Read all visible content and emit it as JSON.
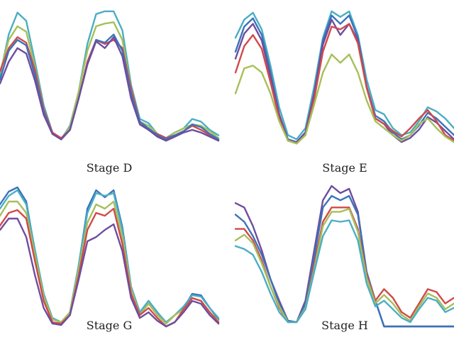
{
  "chart_data": [
    {
      "type": "line",
      "title": "Stage D",
      "series": [
        {
          "color": "#4aaec4",
          "values": [
            0.52,
            0.82,
            0.98,
            0.92,
            0.62,
            0.3,
            0.1,
            0.05,
            0.15,
            0.4,
            0.75,
            0.97,
            0.99,
            0.99,
            0.85,
            0.45,
            0.2,
            0.17,
            0.09,
            0.06,
            0.1,
            0.13,
            0.2,
            0.18,
            0.12,
            0.08
          ]
        },
        {
          "color": "#a6c05a",
          "values": [
            0.54,
            0.78,
            0.88,
            0.84,
            0.58,
            0.27,
            0.1,
            0.05,
            0.14,
            0.4,
            0.7,
            0.88,
            0.9,
            0.91,
            0.78,
            0.42,
            0.18,
            0.15,
            0.09,
            0.05,
            0.1,
            0.13,
            0.16,
            0.15,
            0.11,
            0.06
          ]
        },
        {
          "color": "#d04a4a",
          "values": [
            0.55,
            0.72,
            0.8,
            0.76,
            0.56,
            0.27,
            0.1,
            0.06,
            0.12,
            0.35,
            0.62,
            0.78,
            0.75,
            0.78,
            0.72,
            0.42,
            0.18,
            0.12,
            0.09,
            0.06,
            0.08,
            0.11,
            0.15,
            0.12,
            0.08,
            0.05
          ]
        },
        {
          "color": "#3a73b9",
          "values": [
            0.49,
            0.7,
            0.78,
            0.74,
            0.52,
            0.25,
            0.09,
            0.05,
            0.12,
            0.35,
            0.6,
            0.78,
            0.76,
            0.82,
            0.7,
            0.38,
            0.18,
            0.13,
            0.08,
            0.05,
            0.08,
            0.11,
            0.16,
            0.14,
            0.09,
            0.05
          ]
        },
        {
          "color": "#6e4d9e",
          "values": [
            0.46,
            0.62,
            0.72,
            0.68,
            0.48,
            0.23,
            0.09,
            0.05,
            0.12,
            0.35,
            0.6,
            0.77,
            0.72,
            0.8,
            0.66,
            0.35,
            0.16,
            0.12,
            0.07,
            0.04,
            0.07,
            0.1,
            0.12,
            0.1,
            0.07,
            0.04
          ]
        }
      ]
    },
    {
      "type": "line",
      "title": "Stage E",
      "series": [
        {
          "color": "#4aaec4",
          "values": [
            0.8,
            0.93,
            0.98,
            0.86,
            0.6,
            0.3,
            0.1,
            0.07,
            0.15,
            0.45,
            0.8,
            0.99,
            0.95,
            0.99,
            0.82,
            0.5,
            0.28,
            0.25,
            0.15,
            0.1,
            0.12,
            0.2,
            0.3,
            0.27,
            0.22,
            0.15
          ]
        },
        {
          "color": "#3a73b9",
          "values": [
            0.7,
            0.88,
            0.94,
            0.82,
            0.55,
            0.25,
            0.07,
            0.05,
            0.12,
            0.4,
            0.78,
            0.96,
            0.9,
            0.96,
            0.8,
            0.45,
            0.24,
            0.2,
            0.12,
            0.07,
            0.1,
            0.17,
            0.26,
            0.22,
            0.16,
            0.1
          ]
        },
        {
          "color": "#6e4d9e",
          "values": [
            0.65,
            0.83,
            0.9,
            0.78,
            0.52,
            0.25,
            0.06,
            0.05,
            0.12,
            0.4,
            0.75,
            0.93,
            0.82,
            0.9,
            0.78,
            0.45,
            0.22,
            0.18,
            0.1,
            0.05,
            0.08,
            0.14,
            0.23,
            0.19,
            0.13,
            0.07
          ]
        },
        {
          "color": "#d04a4a",
          "values": [
            0.55,
            0.74,
            0.82,
            0.72,
            0.48,
            0.22,
            0.06,
            0.04,
            0.1,
            0.36,
            0.7,
            0.88,
            0.86,
            0.9,
            0.76,
            0.44,
            0.22,
            0.18,
            0.13,
            0.09,
            0.15,
            0.22,
            0.28,
            0.2,
            0.1,
            0.06
          ]
        },
        {
          "color": "#a6c05a",
          "values": [
            0.4,
            0.58,
            0.6,
            0.55,
            0.4,
            0.2,
            0.06,
            0.04,
            0.1,
            0.32,
            0.55,
            0.68,
            0.62,
            0.68,
            0.55,
            0.35,
            0.2,
            0.15,
            0.1,
            0.06,
            0.1,
            0.18,
            0.22,
            0.15,
            0.09,
            0.05
          ]
        }
      ]
    },
    {
      "type": "line",
      "title": "Stage G",
      "series": [
        {
          "color": "#3a73b9",
          "values": [
            0.88,
            0.97,
            1.0,
            0.9,
            0.55,
            0.25,
            0.07,
            0.05,
            0.12,
            0.45,
            0.85,
            0.98,
            0.93,
            0.98,
            0.72,
            0.3,
            0.12,
            0.2,
            0.12,
            0.04,
            0.1,
            0.15,
            0.25,
            0.24,
            0.15,
            0.07
          ]
        },
        {
          "color": "#4aaec4",
          "values": [
            0.85,
            0.94,
            0.98,
            0.88,
            0.56,
            0.25,
            0.08,
            0.05,
            0.12,
            0.45,
            0.82,
            0.96,
            0.94,
            0.96,
            0.7,
            0.3,
            0.12,
            0.2,
            0.12,
            0.05,
            0.1,
            0.16,
            0.24,
            0.23,
            0.15,
            0.08
          ]
        },
        {
          "color": "#a6c05a",
          "values": [
            0.8,
            0.9,
            0.9,
            0.82,
            0.52,
            0.23,
            0.07,
            0.05,
            0.12,
            0.42,
            0.75,
            0.88,
            0.85,
            0.9,
            0.65,
            0.28,
            0.1,
            0.18,
            0.1,
            0.04,
            0.1,
            0.14,
            0.22,
            0.2,
            0.12,
            0.06
          ]
        },
        {
          "color": "#d04a4a",
          "values": [
            0.73,
            0.82,
            0.84,
            0.78,
            0.48,
            0.2,
            0.05,
            0.04,
            0.1,
            0.38,
            0.7,
            0.82,
            0.8,
            0.85,
            0.6,
            0.25,
            0.1,
            0.15,
            0.08,
            0.02,
            0.05,
            0.14,
            0.22,
            0.2,
            0.12,
            0.05
          ]
        },
        {
          "color": "#6e4d9e",
          "values": [
            0.7,
            0.78,
            0.78,
            0.65,
            0.38,
            0.15,
            0.04,
            0.03,
            0.1,
            0.35,
            0.62,
            0.65,
            0.7,
            0.74,
            0.55,
            0.22,
            0.08,
            0.12,
            0.06,
            0.02,
            0.05,
            0.12,
            0.2,
            0.18,
            0.1,
            0.04
          ]
        }
      ]
    },
    {
      "type": "line",
      "title": "Stage H",
      "series": [
        {
          "color": "#6e4d9e",
          "values": [
            0.88,
            0.85,
            0.72,
            0.55,
            0.35,
            0.2,
            0.06,
            0.05,
            0.2,
            0.55,
            0.9,
            1.0,
            0.95,
            0.98,
            0.82,
            0.4,
            0.2,
            0.02,
            0.02,
            0.02,
            0.02,
            0.02,
            0.02,
            0.02,
            0.02,
            0.02
          ]
        },
        {
          "color": "#3a73b9",
          "values": [
            0.8,
            0.75,
            0.65,
            0.52,
            0.35,
            0.18,
            0.06,
            0.05,
            0.18,
            0.5,
            0.85,
            0.93,
            0.9,
            0.93,
            0.8,
            0.4,
            0.2,
            0.02,
            0.02,
            0.02,
            0.02,
            0.02,
            0.02,
            0.02,
            0.02,
            0.02
          ]
        },
        {
          "color": "#d04a4a",
          "values": [
            0.7,
            0.7,
            0.62,
            0.48,
            0.3,
            0.15,
            0.05,
            0.05,
            0.15,
            0.45,
            0.75,
            0.85,
            0.85,
            0.85,
            0.7,
            0.38,
            0.2,
            0.28,
            0.22,
            0.12,
            0.08,
            0.18,
            0.28,
            0.26,
            0.18,
            0.22
          ]
        },
        {
          "color": "#a6c05a",
          "values": [
            0.62,
            0.66,
            0.6,
            0.46,
            0.3,
            0.16,
            0.05,
            0.05,
            0.15,
            0.42,
            0.72,
            0.82,
            0.82,
            0.84,
            0.68,
            0.36,
            0.18,
            0.24,
            0.18,
            0.1,
            0.06,
            0.16,
            0.25,
            0.22,
            0.14,
            0.18
          ]
        },
        {
          "color": "#4aaec4",
          "values": [
            0.58,
            0.56,
            0.52,
            0.4,
            0.25,
            0.12,
            0.05,
            0.05,
            0.14,
            0.4,
            0.65,
            0.76,
            0.75,
            0.76,
            0.62,
            0.32,
            0.16,
            0.2,
            0.14,
            0.08,
            0.05,
            0.14,
            0.22,
            0.2,
            0.12,
            0.15
          ]
        }
      ]
    }
  ]
}
